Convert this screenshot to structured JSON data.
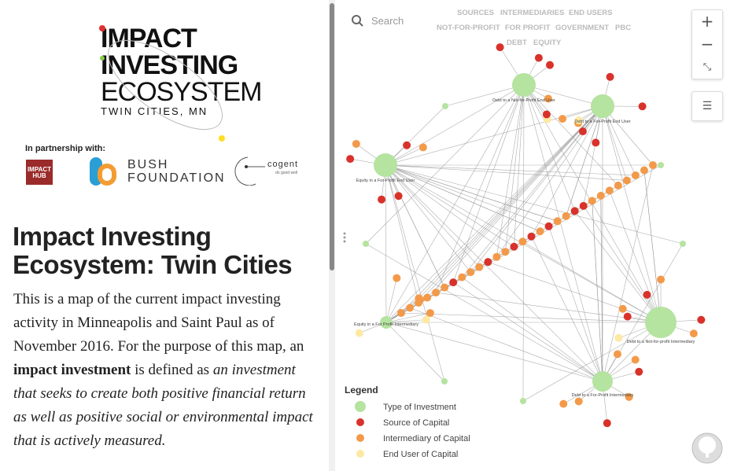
{
  "logo": {
    "line1": "IMPACT",
    "line2": "INVESTING",
    "line3": "ECOSYSTEM",
    "subtitle": "TWIN CITIES, MN"
  },
  "partners": {
    "label": "In partnership with:",
    "hub": "IMPACT HUB",
    "bush1": "BUSH",
    "bush2": "FOUNDATION",
    "cogent": "cogent",
    "cogent_tag": "do good well"
  },
  "article": {
    "title": "Impact Investing Ecosystem: Twin Cities",
    "p1": "This is a map of the current impact investing activity in Minneapolis and Saint Paul as of November 2016. For the purpose of this map, an ",
    "p_bold": "impact investment",
    "p2": " is defined as ",
    "p_italic": "an investment that seeks to create both positive financial return as well as positive social or environmental impact that is actively measured."
  },
  "search": {
    "placeholder": "Search"
  },
  "filters": [
    "SOURCES",
    "INTERMEDIARIES",
    "END USERS",
    "NOT-FOR-PROFIT",
    "FOR PROFIT",
    "GOVERNMENT",
    "PBC",
    "DEBT",
    "EQUITY"
  ],
  "zoom": {
    "in": "+",
    "out": "−"
  },
  "legend": {
    "title": "Legend",
    "items": [
      "Type of Investment",
      "Source of Capital",
      "Intermediary of Capital",
      "End User of Capital"
    ]
  },
  "nodes": [
    "Debt to a Not-for-Profit End User",
    "Debt to a For-Profit End User",
    "Equity in a For-Profit End User",
    "Equity in a For Profit Intermediary",
    "Debt to a Not-for-profit Intermediary",
    "Debt to a For-Profit Intermediary"
  ]
}
